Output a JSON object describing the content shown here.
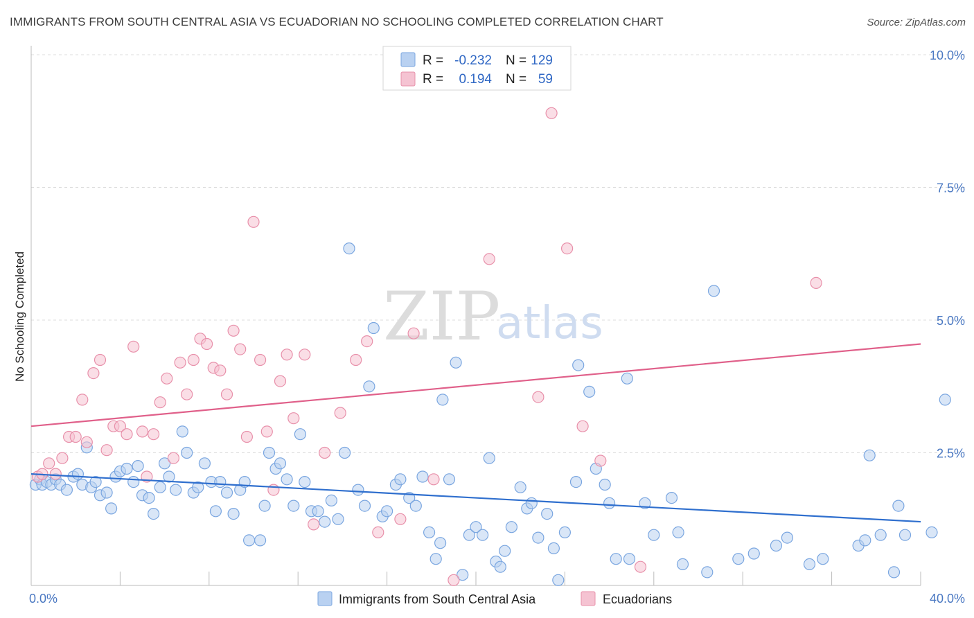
{
  "title": "IMMIGRANTS FROM SOUTH CENTRAL ASIA VS ECUADORIAN NO SCHOOLING COMPLETED CORRELATION CHART",
  "source": "Source: ZipAtlas.com",
  "watermark": {
    "zip": "ZIP",
    "atlas": "atlas"
  },
  "colors": {
    "blue": "#7aa6e0",
    "blue_fill": "#b9d1f1",
    "blue_line": "#2f6fce",
    "pink": "#e890aa",
    "pink_fill": "#f5c3d2",
    "pink_line": "#e0608a",
    "tick": "#4a78c2",
    "grid": "#dddddd"
  },
  "legend": {
    "r_label": "R =",
    "n_label": "N =",
    "series": [
      {
        "r": "-0.232",
        "n": "129"
      },
      {
        "r": "0.194",
        "n": "59"
      }
    ]
  },
  "chart_data": {
    "type": "scatter",
    "ylabel": "No Schooling Completed",
    "x_tick_labels": [
      "0.0%",
      "40.0%"
    ],
    "y_tick_labels": [
      "2.5%",
      "5.0%",
      "7.5%",
      "10.0%"
    ],
    "y_ticks": [
      2.5,
      5.0,
      7.5,
      10.0
    ],
    "xlim": [
      0,
      40
    ],
    "ylim": [
      0,
      10.0
    ],
    "grid": true,
    "legend_position": "bottom",
    "series": [
      {
        "name": "Immigrants from South Central Asia",
        "color": "#7aa6e0",
        "trend": {
          "x": [
            0,
            40
          ],
          "y": [
            2.1,
            1.2
          ]
        },
        "points": [
          [
            0.2,
            1.9
          ],
          [
            0.4,
            2.0
          ],
          [
            0.5,
            1.9
          ],
          [
            0.7,
            1.95
          ],
          [
            0.9,
            1.9
          ],
          [
            1.1,
            2.0
          ],
          [
            1.3,
            1.9
          ],
          [
            1.6,
            1.8
          ],
          [
            1.9,
            2.05
          ],
          [
            2.1,
            2.1
          ],
          [
            2.3,
            1.9
          ],
          [
            2.5,
            2.6
          ],
          [
            2.7,
            1.85
          ],
          [
            2.9,
            1.95
          ],
          [
            3.1,
            1.7
          ],
          [
            3.4,
            1.75
          ],
          [
            3.6,
            1.45
          ],
          [
            3.8,
            2.05
          ],
          [
            4.0,
            2.15
          ],
          [
            4.3,
            2.2
          ],
          [
            4.6,
            1.95
          ],
          [
            4.8,
            2.25
          ],
          [
            5.0,
            1.7
          ],
          [
            5.3,
            1.65
          ],
          [
            5.5,
            1.35
          ],
          [
            5.8,
            1.85
          ],
          [
            6.0,
            2.3
          ],
          [
            6.2,
            2.05
          ],
          [
            6.5,
            1.8
          ],
          [
            6.8,
            2.9
          ],
          [
            7.0,
            2.5
          ],
          [
            7.3,
            1.75
          ],
          [
            7.5,
            1.85
          ],
          [
            7.8,
            2.3
          ],
          [
            8.1,
            1.95
          ],
          [
            8.3,
            1.4
          ],
          [
            8.5,
            1.95
          ],
          [
            8.8,
            1.75
          ],
          [
            9.1,
            1.35
          ],
          [
            9.4,
            1.8
          ],
          [
            9.6,
            1.95
          ],
          [
            9.8,
            0.85
          ],
          [
            10.3,
            0.85
          ],
          [
            10.5,
            1.5
          ],
          [
            10.7,
            2.5
          ],
          [
            11.0,
            2.2
          ],
          [
            11.2,
            2.3
          ],
          [
            11.5,
            2.0
          ],
          [
            11.8,
            1.5
          ],
          [
            12.1,
            2.85
          ],
          [
            12.3,
            1.95
          ],
          [
            12.6,
            1.4
          ],
          [
            12.9,
            1.4
          ],
          [
            13.2,
            1.2
          ],
          [
            13.5,
            1.6
          ],
          [
            13.8,
            1.25
          ],
          [
            14.1,
            2.5
          ],
          [
            14.3,
            6.35
          ],
          [
            14.7,
            1.8
          ],
          [
            15.0,
            1.5
          ],
          [
            15.2,
            3.75
          ],
          [
            15.4,
            4.85
          ],
          [
            15.8,
            1.3
          ],
          [
            16.0,
            1.4
          ],
          [
            16.4,
            1.9
          ],
          [
            16.6,
            2.0
          ],
          [
            17.0,
            1.65
          ],
          [
            17.3,
            1.5
          ],
          [
            17.6,
            2.05
          ],
          [
            17.9,
            1.0
          ],
          [
            18.2,
            0.5
          ],
          [
            18.4,
            0.8
          ],
          [
            18.5,
            3.5
          ],
          [
            18.8,
            2.0
          ],
          [
            19.1,
            4.2
          ],
          [
            19.4,
            0.2
          ],
          [
            19.7,
            0.95
          ],
          [
            20.0,
            1.1
          ],
          [
            20.3,
            0.95
          ],
          [
            20.6,
            2.4
          ],
          [
            20.9,
            0.45
          ],
          [
            21.1,
            0.35
          ],
          [
            21.3,
            0.65
          ],
          [
            21.6,
            1.1
          ],
          [
            22.0,
            1.85
          ],
          [
            22.3,
            1.45
          ],
          [
            22.5,
            1.55
          ],
          [
            22.8,
            0.9
          ],
          [
            23.2,
            1.35
          ],
          [
            23.5,
            0.7
          ],
          [
            23.7,
            0.1
          ],
          [
            24.0,
            1.0
          ],
          [
            24.5,
            1.95
          ],
          [
            25.1,
            3.65
          ],
          [
            25.4,
            2.2
          ],
          [
            25.8,
            1.9
          ],
          [
            26.0,
            1.55
          ],
          [
            26.3,
            0.5
          ],
          [
            26.8,
            3.9
          ],
          [
            26.9,
            0.5
          ],
          [
            27.6,
            1.55
          ],
          [
            28.0,
            0.95
          ],
          [
            28.8,
            1.65
          ],
          [
            29.1,
            1.0
          ],
          [
            29.3,
            0.4
          ],
          [
            24.6,
            4.15
          ],
          [
            30.4,
            0.25
          ],
          [
            30.7,
            5.55
          ],
          [
            31.8,
            0.5
          ],
          [
            32.5,
            0.6
          ],
          [
            33.5,
            0.75
          ],
          [
            34.0,
            0.9
          ],
          [
            35.0,
            0.4
          ],
          [
            35.6,
            0.5
          ],
          [
            37.2,
            0.75
          ],
          [
            37.5,
            0.85
          ],
          [
            37.7,
            2.45
          ],
          [
            38.2,
            0.95
          ],
          [
            38.8,
            0.25
          ],
          [
            39.0,
            1.5
          ],
          [
            39.3,
            0.95
          ],
          [
            40.5,
            1.0
          ],
          [
            41.1,
            3.5
          ]
        ]
      },
      {
        "name": "Ecuadorians",
        "color": "#e890aa",
        "trend": {
          "x": [
            0,
            40
          ],
          "y": [
            3.0,
            4.55
          ]
        },
        "points": [
          [
            0.3,
            2.05
          ],
          [
            0.5,
            2.1
          ],
          [
            0.8,
            2.3
          ],
          [
            1.1,
            2.1
          ],
          [
            1.4,
            2.4
          ],
          [
            1.7,
            2.8
          ],
          [
            2.0,
            2.8
          ],
          [
            2.3,
            3.5
          ],
          [
            2.5,
            2.7
          ],
          [
            2.8,
            4.0
          ],
          [
            3.1,
            4.25
          ],
          [
            3.4,
            2.55
          ],
          [
            3.7,
            3.0
          ],
          [
            4.0,
            3.0
          ],
          [
            4.3,
            2.85
          ],
          [
            4.6,
            4.5
          ],
          [
            5.0,
            2.9
          ],
          [
            5.2,
            2.05
          ],
          [
            5.5,
            2.85
          ],
          [
            5.8,
            3.45
          ],
          [
            6.1,
            3.9
          ],
          [
            6.4,
            2.4
          ],
          [
            6.7,
            4.2
          ],
          [
            7.0,
            3.6
          ],
          [
            7.3,
            4.25
          ],
          [
            7.6,
            4.65
          ],
          [
            7.9,
            4.55
          ],
          [
            8.2,
            4.1
          ],
          [
            8.5,
            4.05
          ],
          [
            8.8,
            3.6
          ],
          [
            9.1,
            4.8
          ],
          [
            9.4,
            4.45
          ],
          [
            9.7,
            2.8
          ],
          [
            10.0,
            6.85
          ],
          [
            10.3,
            4.25
          ],
          [
            10.6,
            2.9
          ],
          [
            10.9,
            1.8
          ],
          [
            11.2,
            3.85
          ],
          [
            11.5,
            4.35
          ],
          [
            11.8,
            3.15
          ],
          [
            12.3,
            4.35
          ],
          [
            12.7,
            1.15
          ],
          [
            13.2,
            2.5
          ],
          [
            13.9,
            3.25
          ],
          [
            14.6,
            4.25
          ],
          [
            15.1,
            4.6
          ],
          [
            15.6,
            1.0
          ],
          [
            16.6,
            1.25
          ],
          [
            17.2,
            4.75
          ],
          [
            18.1,
            2.0
          ],
          [
            19.0,
            0.1
          ],
          [
            20.6,
            6.15
          ],
          [
            22.8,
            3.55
          ],
          [
            23.4,
            8.9
          ],
          [
            24.1,
            6.35
          ],
          [
            24.8,
            3.0
          ],
          [
            25.6,
            2.35
          ],
          [
            27.4,
            0.35
          ],
          [
            35.3,
            5.7
          ]
        ]
      }
    ]
  }
}
